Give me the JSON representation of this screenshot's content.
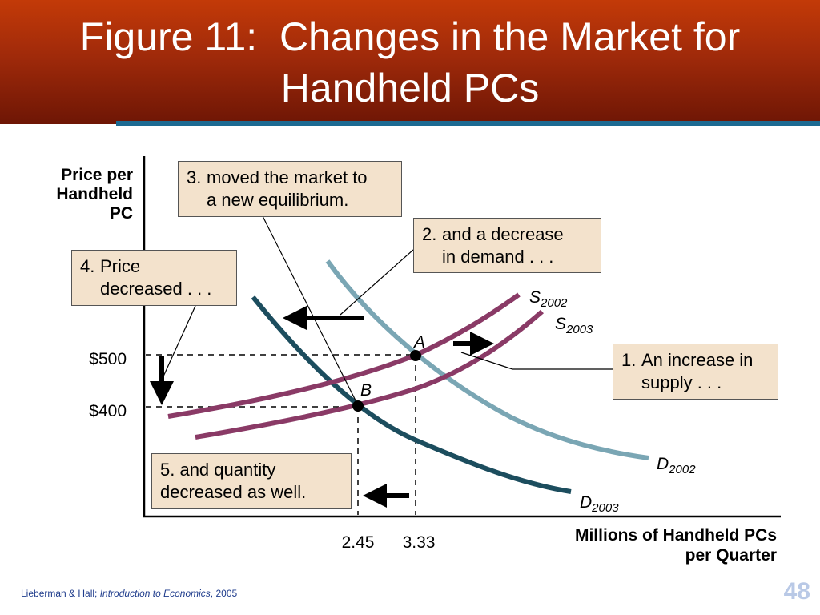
{
  "slide": {
    "title_lines": [
      "Figure 11:  Changes in the Market for",
      "Handheld PCs"
    ],
    "footer_authors": "Lieberman & Hall; ",
    "footer_book": "Introduction to Economics",
    "footer_year": ", 2005",
    "page_number": "48"
  },
  "colors": {
    "header_top": "#c33a08",
    "header_bottom": "#6e1605",
    "accent_bar": "#1c6a92",
    "supply": "#8a3a66",
    "demand_2002": "#7aa6b4",
    "demand_2003": "#1c4d5e",
    "callout_fill": "#f3e2cc"
  },
  "chart_data": {
    "type": "line",
    "ylabel_lines": [
      "Price per",
      "Handheld",
      "PC"
    ],
    "xlabel_lines": [
      "Millions of Handheld PCs",
      "per Quarter"
    ],
    "series": [
      {
        "name": "S2002",
        "label_main": "S",
        "label_sub": "2002"
      },
      {
        "name": "S2003",
        "label_main": "S",
        "label_sub": "2003"
      },
      {
        "name": "D2002",
        "label_main": "D",
        "label_sub": "2002"
      },
      {
        "name": "D2003",
        "label_main": "D",
        "label_sub": "2003"
      }
    ],
    "points": [
      {
        "label": "A",
        "quantity": 3.33,
        "price": 500
      },
      {
        "label": "B",
        "quantity": 2.45,
        "price": 400
      }
    ],
    "y_tick_labels": [
      "$500",
      "$400"
    ],
    "x_tick_labels": [
      "2.45",
      "3.33"
    ],
    "annotations": [
      {
        "num": "1.",
        "lines": [
          "An increase in",
          "supply . . ."
        ]
      },
      {
        "num": "2.",
        "lines": [
          "and a decrease",
          "in demand . . ."
        ]
      },
      {
        "num": "3.",
        "lines": [
          "moved the market to",
          "a new equilibrium."
        ]
      },
      {
        "num": "4.",
        "lines": [
          "Price",
          "decreased . . ."
        ]
      },
      {
        "num": "",
        "lines": [
          "5. and quantity",
          "decreased as well."
        ]
      }
    ],
    "grid": false,
    "legend": "none"
  }
}
